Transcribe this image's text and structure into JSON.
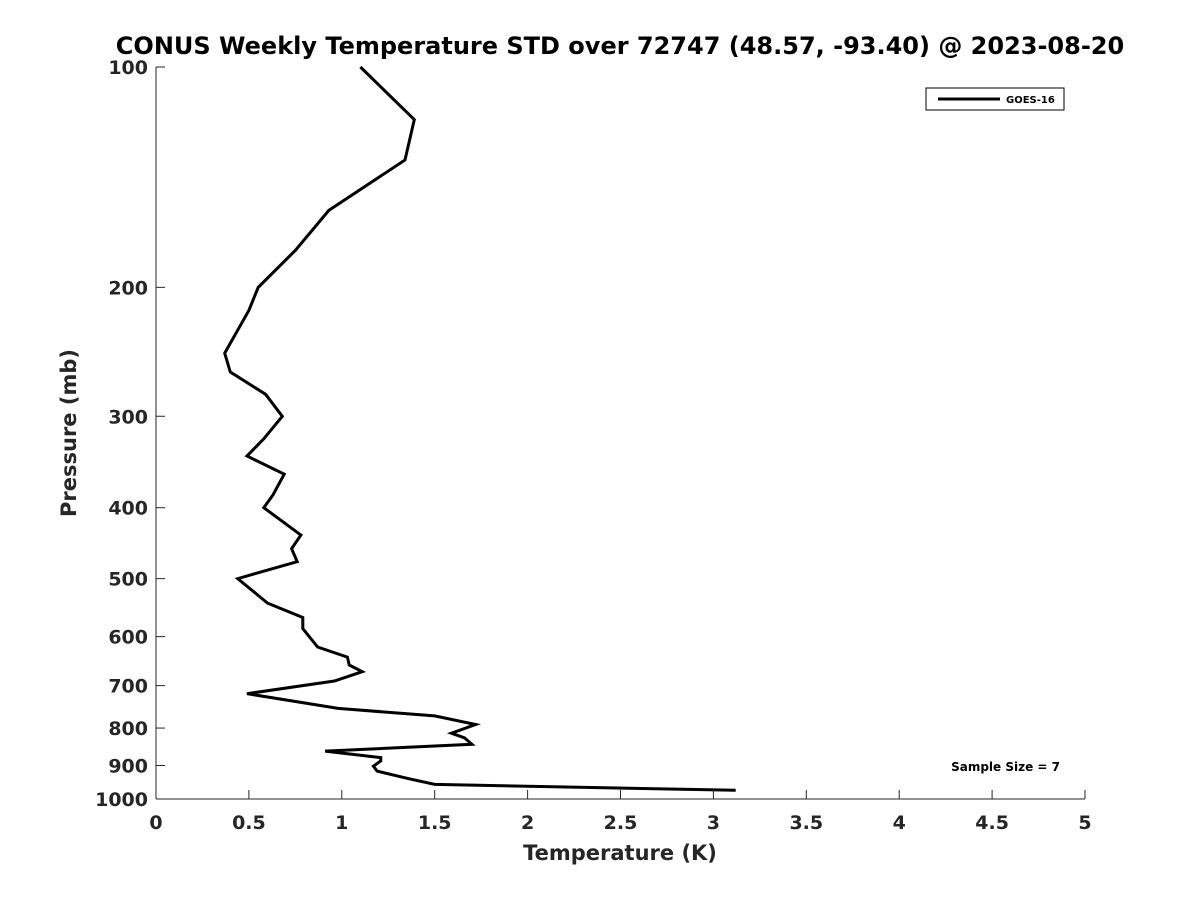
{
  "chart_data": {
    "type": "line",
    "title": "CONUS Weekly Temperature STD over 72747 (48.57, -93.40) @ 2023-08-20",
    "xlabel": "Temperature (K)",
    "ylabel": "Pressure (mb)",
    "xlim": [
      0,
      5
    ],
    "ylim": [
      100,
      1000
    ],
    "yscale": "log",
    "y_reversed": true,
    "x_ticks": [
      "0",
      "0.5",
      "1",
      "1.5",
      "2",
      "2.5",
      "3",
      "3.5",
      "4",
      "4.5",
      "5"
    ],
    "y_ticks": [
      "100",
      "200",
      "300",
      "400",
      "500",
      "600",
      "700",
      "800",
      "900",
      "1000"
    ],
    "legend_position": "top-right",
    "line_color": "#000000",
    "series": [
      {
        "name": "GOES-16",
        "x": [
          1.1,
          1.39,
          1.34,
          0.93,
          0.75,
          0.55,
          0.5,
          0.37,
          0.4,
          0.59,
          0.68,
          0.58,
          0.49,
          0.69,
          0.63,
          0.58,
          0.78,
          0.73,
          0.76,
          0.44,
          0.6,
          0.79,
          0.79,
          0.87,
          1.03,
          1.04,
          1.11,
          0.96,
          0.49,
          0.98,
          1.5,
          1.72,
          1.59,
          1.66,
          1.7,
          0.91,
          1.21,
          1.21,
          1.17,
          1.19,
          1.36,
          1.5,
          3.12
        ],
        "y": [
          100,
          118,
          134,
          157,
          178,
          200,
          215,
          246,
          261,
          280,
          300,
          322,
          340,
          360,
          384,
          400,
          436,
          455,
          474,
          500,
          540,
          565,
          585,
          620,
          640,
          656,
          670,
          690,
          718,
          752,
          770,
          791,
          813,
          825,
          842,
          860,
          878,
          887,
          902,
          916,
          938,
          955,
          973
        ]
      }
    ],
    "annotation": "Sample Size = 7"
  }
}
